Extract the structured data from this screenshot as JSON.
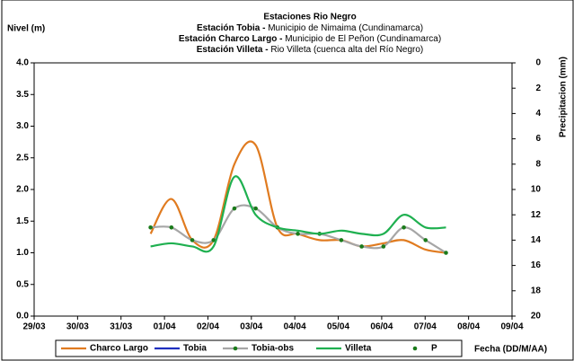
{
  "chart_data": {
    "type": "line",
    "title": "Estaciones Rio Negro",
    "subtitles": [
      {
        "bold": "Estación Tobia - ",
        "text": "Municipio de Nimaima (Cundinamarca)"
      },
      {
        "bold": "Estación Charco Largo - ",
        "text": "Municipio de El Peñon (Cundinamarca)"
      },
      {
        "bold": "Estación Villeta - ",
        "text": "Rio Villeta (cuenca alta del Río Negro)"
      }
    ],
    "y_label": "Nivel (m)",
    "y2_label": "Precipitacion (mm)",
    "x_label": "Fecha (DD/M/AA)",
    "x": [
      2.68,
      3.16,
      3.64,
      4.13,
      4.61,
      5.1,
      5.6,
      6.07,
      6.57,
      7.07,
      7.54,
      8.04,
      8.51,
      9.01,
      9.48
    ],
    "series": [
      {
        "name": "Charco Largo",
        "color": "#e07b20",
        "marker": false,
        "values": [
          1.3,
          1.85,
          1.2,
          1.2,
          2.4,
          2.7,
          1.4,
          1.3,
          1.2,
          1.2,
          1.1,
          1.15,
          1.2,
          1.05,
          1.0
        ]
      },
      {
        "name": "Tobia",
        "color": "#1f2fbf",
        "marker": false,
        "values": [
          null,
          null,
          null,
          null,
          null,
          null,
          null,
          null,
          null,
          null,
          null,
          null,
          null,
          null,
          null
        ]
      },
      {
        "name": "Tobia-obs",
        "color": "#a6a6a6",
        "marker": true,
        "values": [
          1.4,
          1.4,
          1.2,
          1.2,
          1.7,
          1.7,
          1.4,
          1.3,
          1.3,
          1.2,
          1.1,
          1.1,
          1.4,
          1.2,
          1.0
        ]
      },
      {
        "name": "Villeta",
        "color": "#1fb050",
        "marker": false,
        "values": [
          1.1,
          1.15,
          1.1,
          1.1,
          2.2,
          1.6,
          1.4,
          1.35,
          1.3,
          1.35,
          1.3,
          1.3,
          1.6,
          1.4,
          1.4
        ]
      },
      {
        "name": "P",
        "color": "#1a7a1a",
        "marker": true,
        "axis": "y2",
        "values": [
          null,
          null,
          null,
          null,
          null,
          null,
          null,
          null,
          null,
          null,
          null,
          null,
          null,
          null,
          null
        ]
      }
    ],
    "xlim": [
      0,
      11
    ],
    "xticks": [
      {
        "value": 0,
        "label": "29/03"
      },
      {
        "value": 1,
        "label": "30/03"
      },
      {
        "value": 2,
        "label": "31/03"
      },
      {
        "value": 3,
        "label": "01/04"
      },
      {
        "value": 4,
        "label": "02/04"
      },
      {
        "value": 5,
        "label": "03/04"
      },
      {
        "value": 6,
        "label": "04/04"
      },
      {
        "value": 7,
        "label": "05/04"
      },
      {
        "value": 8,
        "label": "06/04"
      },
      {
        "value": 9,
        "label": "07/04"
      },
      {
        "value": 10,
        "label": "08/04"
      },
      {
        "value": 11,
        "label": "09/04"
      }
    ],
    "ylim": [
      0,
      4
    ],
    "yticks": [
      {
        "value": 0,
        "label": "0.0"
      },
      0.5,
      {
        "value": 1,
        "label": "1.0"
      },
      1.5,
      {
        "value": 2,
        "label": "2.0"
      },
      2.5,
      {
        "value": 3,
        "label": "3.0"
      },
      3.5,
      {
        "value": 4,
        "label": "4.0"
      }
    ],
    "y2lim": [
      20,
      0
    ],
    "y2ticks": [
      0,
      2,
      4,
      6,
      8,
      10,
      12,
      14,
      16,
      18,
      20
    ],
    "marker_color": "#1a7a1a",
    "legend": "bottom"
  }
}
